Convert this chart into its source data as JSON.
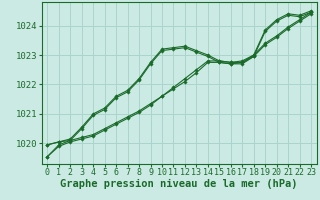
{
  "background_color": "#cceae4",
  "grid_color": "#aad4cc",
  "line_color": "#1a6b2a",
  "marker_color": "#1a6b2a",
  "xlabel": "Graphe pression niveau de la mer (hPa)",
  "xlabel_fontsize": 7.5,
  "ylabel_fontsize": 6.5,
  "tick_fontsize": 6.0,
  "ylim": [
    1019.3,
    1024.8
  ],
  "xlim": [
    -0.5,
    23.5
  ],
  "yticks": [
    1020,
    1021,
    1022,
    1023,
    1024
  ],
  "xticks": [
    0,
    1,
    2,
    3,
    4,
    5,
    6,
    7,
    8,
    9,
    10,
    11,
    12,
    13,
    14,
    15,
    16,
    17,
    18,
    19,
    20,
    21,
    22,
    23
  ],
  "series": [
    [
      1019.55,
      1019.95,
      1020.1,
      1020.2,
      1020.3,
      1020.5,
      1020.7,
      1020.9,
      1021.1,
      1021.35,
      1021.6,
      1021.9,
      1022.2,
      1022.5,
      1022.8,
      1022.8,
      1022.75,
      1022.75,
      1023.0,
      1023.4,
      1023.65,
      1023.95,
      1024.2,
      1024.45
    ],
    [
      1019.95,
      1020.05,
      1020.15,
      1020.55,
      1021.0,
      1021.2,
      1021.6,
      1021.8,
      1022.2,
      1022.75,
      1023.2,
      1023.25,
      1023.3,
      1023.15,
      1023.0,
      1022.8,
      1022.75,
      1022.8,
      1023.0,
      1023.85,
      1024.2,
      1024.4,
      1024.35,
      1024.5
    ],
    [
      1019.55,
      1019.9,
      1020.05,
      1020.15,
      1020.25,
      1020.45,
      1020.65,
      1020.85,
      1021.05,
      1021.3,
      1021.6,
      1021.85,
      1022.1,
      1022.4,
      1022.75,
      1022.75,
      1022.7,
      1022.7,
      1022.95,
      1023.35,
      1023.6,
      1023.9,
      1024.15,
      1024.4
    ],
    [
      1019.95,
      1020.05,
      1020.1,
      1020.5,
      1020.95,
      1021.15,
      1021.55,
      1021.75,
      1022.15,
      1022.7,
      1023.15,
      1023.2,
      1023.25,
      1023.1,
      1022.95,
      1022.75,
      1022.7,
      1022.75,
      1022.95,
      1023.8,
      1024.15,
      1024.35,
      1024.3,
      1024.45
    ]
  ]
}
